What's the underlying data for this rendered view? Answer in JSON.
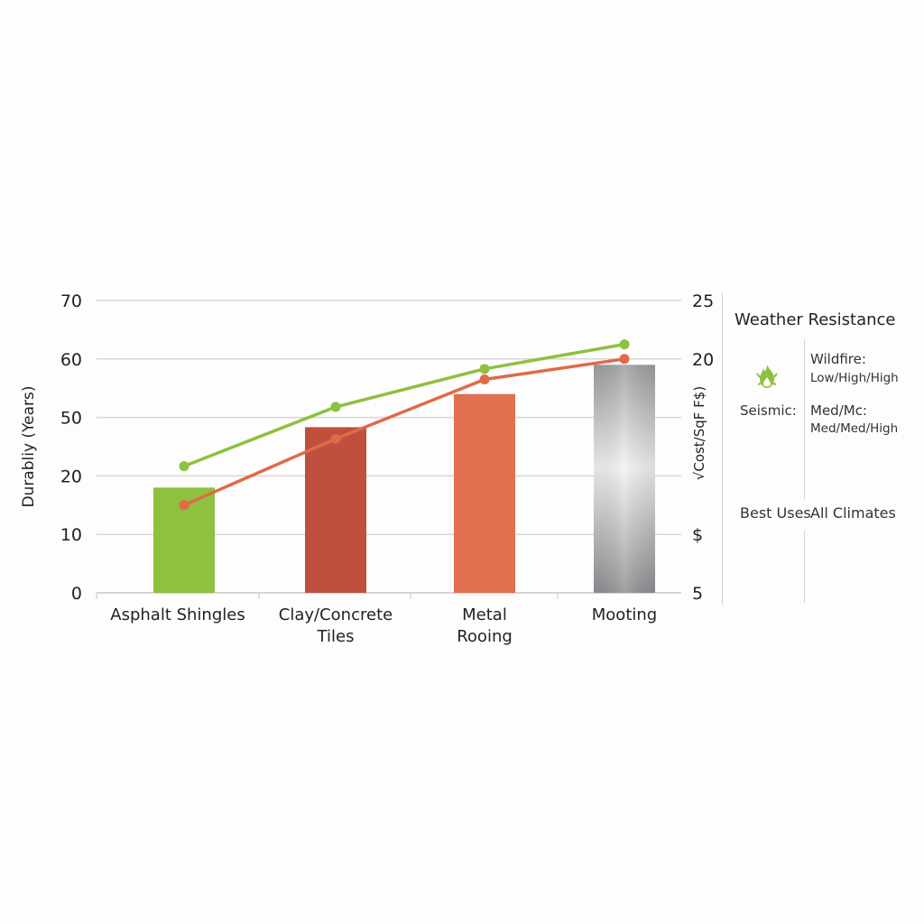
{
  "chart_data": {
    "type": "bar+line",
    "categories": [
      "Asphalt Shingles",
      "Clay/Concrete\nTiles",
      "Metal\nRooing",
      "Mooting"
    ],
    "ylabel": "Durabliy (Years)",
    "y2label": "√Cost/SqF F$)",
    "y_ticks": [
      "70",
      "60",
      "50",
      "20",
      "10",
      "0"
    ],
    "y2_ticks": [
      "25",
      "20",
      "",
      "",
      "$",
      "5"
    ],
    "grid": true,
    "bars": {
      "values": [
        18,
        45,
        54,
        59
      ],
      "colors": [
        "#8dc13f",
        "#c0503e",
        "#e07050",
        "gradient-gray"
      ]
    },
    "series": [
      {
        "color": "#8dc13f",
        "values": [
          25,
          51.8,
          58.3,
          62.5
        ]
      },
      {
        "color": "#e06a48",
        "values": [
          15,
          39,
          56.5,
          60
        ]
      }
    ]
  },
  "panel": {
    "title": "Weather Resistance",
    "icon": "fire-icon",
    "icon_color": "#8dc13f",
    "wildfire_label": "Wildfire:",
    "wildfire_value": "Low/High/High",
    "seismic_label": "Seismic:",
    "seismic_value_1": "Med/Mc:",
    "seismic_value_2": "Med/Med/High",
    "best_uses_label": "Best Uses",
    "best_uses_value": "All Climates"
  }
}
